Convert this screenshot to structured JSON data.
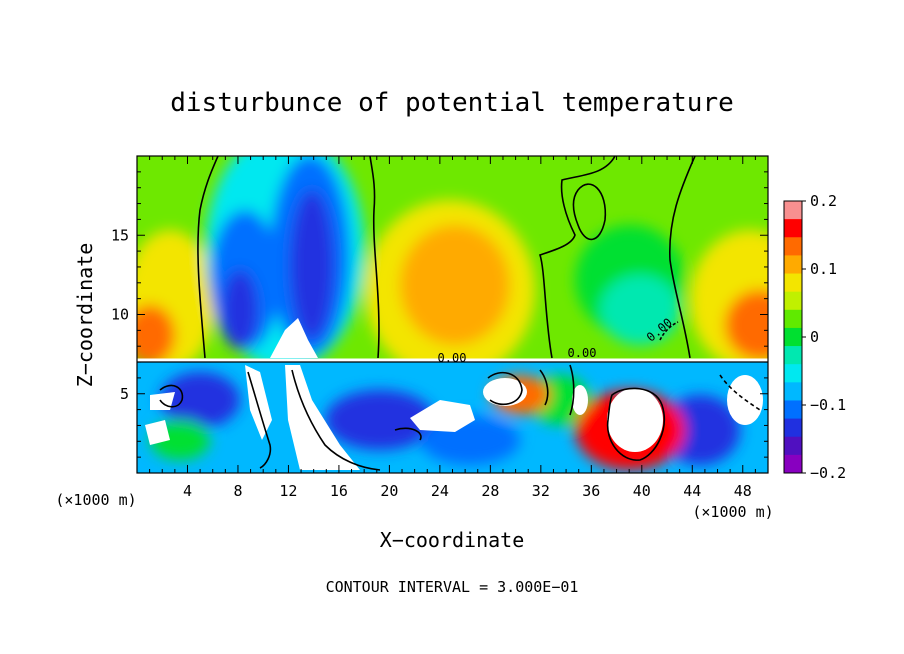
{
  "chart_data": {
    "type": "heatmap",
    "title": "disturbunce of potential temperature",
    "xlabel": "X−coordinate",
    "ylabel": "Z−coordinate",
    "x_unit_left": "(×1000 m)",
    "x_unit_right": "(×1000 m)",
    "xlim": [
      0,
      50
    ],
    "ylim": [
      0,
      20
    ],
    "x_ticks": [
      4,
      8,
      12,
      16,
      20,
      24,
      28,
      32,
      36,
      40,
      44,
      48
    ],
    "x_tick_labels": [
      "4",
      "8",
      "12",
      "16",
      "20",
      "24",
      "28",
      "32",
      "36",
      "40",
      "44",
      "48"
    ],
    "y_ticks": [
      5,
      10,
      15
    ],
    "y_tick_labels": [
      "5",
      "10",
      "15"
    ],
    "colorbar": {
      "range": [
        -0.2,
        0.2
      ],
      "tick_values": [
        0.2,
        0.1,
        0,
        -0.1,
        -0.2
      ],
      "tick_labels": [
        "0.2",
        "0.1",
        "0",
        "−0.1",
        "−0.2"
      ],
      "colors": [
        "#f89090",
        "#ff0000",
        "#ff6a00",
        "#ffaa00",
        "#f3e500",
        "#c0f000",
        "#60ea00",
        "#00e030",
        "#00e8b0",
        "#00e8f0",
        "#00b8ff",
        "#0070ff",
        "#2030e0",
        "#5010c0",
        "#8800c0"
      ]
    },
    "interface_height": 7.2,
    "contour_labels": [
      "0.00",
      "0.00",
      "0.00"
    ],
    "contour_interval_text": "CONTOUR INTERVAL = 3.000E−01"
  }
}
